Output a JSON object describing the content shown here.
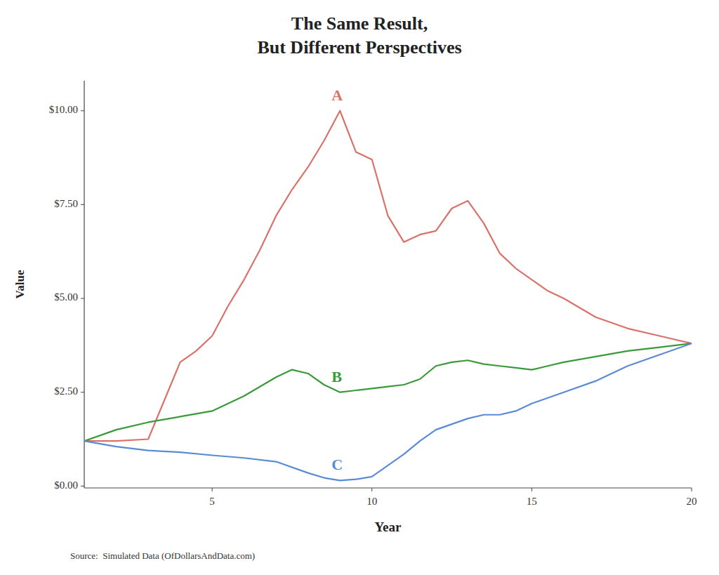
{
  "chart_data": {
    "type": "line",
    "title": "The Same Result,\nBut Different Perspectives",
    "x_label": "Year",
    "y_label": "Value",
    "source": "Source:  Simulated Data (OfDollarsAndData.com)",
    "background_color": "#ffffff",
    "grid": false,
    "xlim": [
      1,
      20
    ],
    "ylim": [
      -0.05,
      10.8
    ],
    "xticks": [
      5,
      10,
      15,
      20
    ],
    "yticks": [
      {
        "value": 0.0,
        "label": "$0.00"
      },
      {
        "value": 2.5,
        "label": "$2.50"
      },
      {
        "value": 5.0,
        "label": "$5.00"
      },
      {
        "value": 7.5,
        "label": "$7.50"
      },
      {
        "value": 10.0,
        "label": "$10.00"
      }
    ],
    "series": [
      {
        "name": "A",
        "color": "#d9726a",
        "x": [
          1,
          2,
          3,
          4,
          4.5,
          5,
          5.5,
          6,
          6.5,
          7,
          7.5,
          8,
          8.5,
          9,
          9.5,
          10,
          10.5,
          11,
          11.5,
          12,
          12.5,
          13,
          13.5,
          14,
          14.5,
          15,
          15.5,
          16,
          17,
          18,
          19,
          20
        ],
        "values": [
          1.2,
          1.2,
          1.25,
          3.3,
          3.6,
          4.0,
          4.8,
          5.5,
          6.3,
          7.2,
          7.9,
          8.5,
          9.2,
          10.0,
          8.9,
          8.7,
          7.2,
          6.5,
          6.7,
          6.8,
          7.4,
          7.6,
          7.0,
          6.2,
          5.8,
          5.5,
          5.2,
          5.0,
          4.5,
          4.2,
          4.0,
          3.8
        ]
      },
      {
        "name": "B",
        "color": "#3a9a3a",
        "x": [
          1,
          2,
          3,
          4,
          5,
          6,
          7,
          7.5,
          8,
          8.5,
          9,
          9.5,
          10,
          10.5,
          11,
          11.5,
          12,
          12.5,
          13,
          13.5,
          14,
          14.5,
          15,
          15.5,
          16,
          17,
          18,
          19,
          20
        ],
        "values": [
          1.2,
          1.5,
          1.7,
          1.85,
          2.0,
          2.4,
          2.9,
          3.1,
          3.0,
          2.7,
          2.5,
          2.55,
          2.6,
          2.65,
          2.7,
          2.85,
          3.2,
          3.3,
          3.35,
          3.25,
          3.2,
          3.15,
          3.1,
          3.2,
          3.3,
          3.45,
          3.6,
          3.7,
          3.8
        ]
      },
      {
        "name": "C",
        "color": "#5b8bd4",
        "x": [
          1,
          2,
          3,
          4,
          5,
          6,
          7,
          8,
          8.5,
          9,
          9.5,
          10,
          10.5,
          11,
          11.5,
          12,
          12.5,
          13,
          13.5,
          14,
          14.5,
          15,
          15.5,
          16,
          17,
          18,
          19,
          20
        ],
        "values": [
          1.2,
          1.05,
          0.95,
          0.9,
          0.82,
          0.75,
          0.65,
          0.35,
          0.22,
          0.15,
          0.18,
          0.25,
          0.55,
          0.85,
          1.2,
          1.5,
          1.65,
          1.8,
          1.9,
          1.9,
          2.0,
          2.2,
          2.35,
          2.5,
          2.8,
          3.2,
          3.5,
          3.8
        ]
      }
    ]
  }
}
